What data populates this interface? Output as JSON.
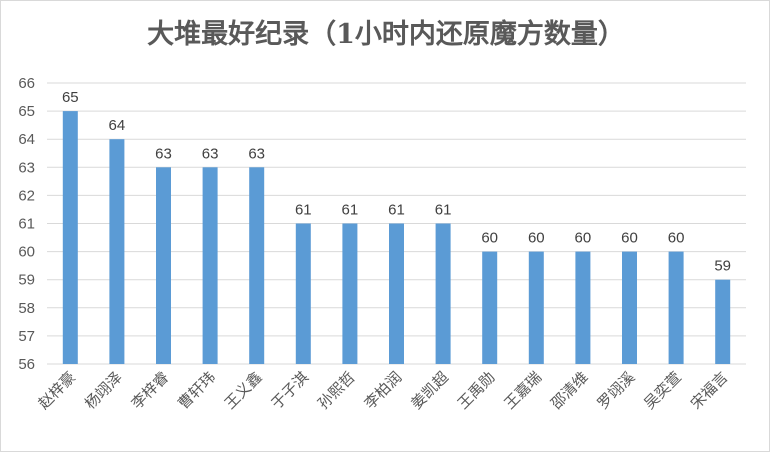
{
  "chart_data": {
    "type": "bar",
    "title": "大堆最好纪录（1小时内还原魔方数量）",
    "xlabel": "",
    "ylabel": "",
    "ylim": [
      56,
      66
    ],
    "yticks": [
      56,
      57,
      58,
      59,
      60,
      61,
      62,
      63,
      64,
      65,
      66
    ],
    "grid": true,
    "legend": "none",
    "bar_color": "#5b9bd5",
    "categories": [
      "赵梓豪",
      "杨翊泽",
      "李梓睿",
      "曹轩玮",
      "王义鑫",
      "于子淇",
      "孙熙哲",
      "李柏润",
      "姜凯超",
      "王禹勋",
      "王嘉瑞",
      "邵清维",
      "罗翊溪",
      "吴奕萱",
      "宋福言"
    ],
    "values": [
      65,
      64,
      63,
      63,
      63,
      61,
      61,
      61,
      61,
      60,
      60,
      60,
      60,
      60,
      59
    ]
  }
}
